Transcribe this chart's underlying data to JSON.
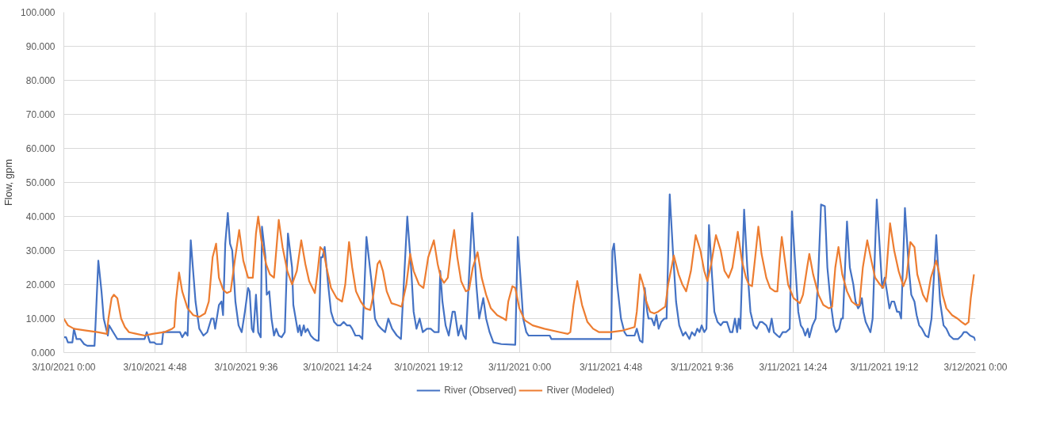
{
  "chart_data": {
    "type": "line",
    "ylabel": "Flow, gpm",
    "xlim": [
      "2021-03-10T00:00",
      "2021-03-12T00:00"
    ],
    "ylim": [
      0,
      100
    ],
    "xticks": [
      {
        "value": "2021-03-10T00:00",
        "label": "3/10/2021 0:00"
      },
      {
        "value": "2021-03-10T04:48",
        "label": "3/10/2021 4:48"
      },
      {
        "value": "2021-03-10T09:36",
        "label": "3/10/2021 9:36"
      },
      {
        "value": "2021-03-10T14:24",
        "label": "3/10/2021 14:24"
      },
      {
        "value": "2021-03-10T19:12",
        "label": "3/10/2021 19:12"
      },
      {
        "value": "2021-03-11T00:00",
        "label": "3/11/2021 0:00"
      },
      {
        "value": "2021-03-11T04:48",
        "label": "3/11/2021 4:48"
      },
      {
        "value": "2021-03-11T09:36",
        "label": "3/11/2021 9:36"
      },
      {
        "value": "2021-03-11T14:24",
        "label": "3/11/2021 14:24"
      },
      {
        "value": "2021-03-11T19:12",
        "label": "3/11/2021 19:12"
      },
      {
        "value": "2021-03-12T00:00",
        "label": "3/12/2021 0:00"
      }
    ],
    "yticks": [
      {
        "value": 0,
        "label": "0.000"
      },
      {
        "value": 10,
        "label": "10.000"
      },
      {
        "value": 20,
        "label": "20.000"
      },
      {
        "value": 30,
        "label": "30.000"
      },
      {
        "value": 40,
        "label": "40.000"
      },
      {
        "value": 50,
        "label": "50.000"
      },
      {
        "value": 60,
        "label": "60.000"
      },
      {
        "value": 70,
        "label": "70.000"
      },
      {
        "value": 80,
        "label": "80.000"
      },
      {
        "value": 90,
        "label": "90.000"
      },
      {
        "value": 100,
        "label": "100.000"
      }
    ],
    "grid": true,
    "legend": "bottom",
    "series": [
      {
        "name": "River (Observed)",
        "color": "#4472c4",
        "x": [
          "2021-03-10T00:00",
          "2021-03-10T00:07",
          "2021-03-10T00:13",
          "2021-03-10T00:27",
          "2021-03-10T00:32",
          "2021-03-10T00:40",
          "2021-03-10T00:52",
          "2021-03-10T01:04",
          "2021-03-10T01:14",
          "2021-03-10T01:37",
          "2021-03-10T01:41",
          "2021-03-10T01:49",
          "2021-03-10T01:59",
          "2021-03-10T02:06",
          "2021-03-10T02:19",
          "2021-03-10T02:23",
          "2021-03-10T02:36",
          "2021-03-10T02:49",
          "2021-03-10T04:15",
          "2021-03-10T04:22",
          "2021-03-10T04:32",
          "2021-03-10T04:45",
          "2021-03-10T04:52",
          "2021-03-10T05:10",
          "2021-03-10T05:14",
          "2021-03-10T05:54",
          "2021-03-10T06:07",
          "2021-03-10T06:14",
          "2021-03-10T06:24",
          "2021-03-10T06:31",
          "2021-03-10T06:41",
          "2021-03-10T06:56",
          "2021-03-10T07:08",
          "2021-03-10T07:21",
          "2021-03-10T07:33",
          "2021-03-10T07:46",
          "2021-03-10T07:53",
          "2021-03-10T07:58",
          "2021-03-10T08:10",
          "2021-03-10T08:18",
          "2021-03-10T08:23",
          "2021-03-10T08:30",
          "2021-03-10T08:38",
          "2021-03-10T08:45",
          "2021-03-10T08:52",
          "2021-03-10T09:02",
          "2021-03-10T09:12",
          "2021-03-10T09:22",
          "2021-03-10T09:32",
          "2021-03-10T09:42",
          "2021-03-10T09:47",
          "2021-03-10T09:54",
          "2021-03-10T09:59",
          "2021-03-10T10:07",
          "2021-03-10T10:14",
          "2021-03-10T10:22",
          "2021-03-10T10:26",
          "2021-03-10T10:37",
          "2021-03-10T10:41",
          "2021-03-10T10:49",
          "2021-03-10T10:56",
          "2021-03-10T11:04",
          "2021-03-10T11:11",
          "2021-03-10T11:19",
          "2021-03-10T11:28",
          "2021-03-10T11:38",
          "2021-03-10T11:48",
          "2021-03-10T12:01",
          "2021-03-10T12:05",
          "2021-03-10T12:16",
          "2021-03-10T12:20",
          "2021-03-10T12:25",
          "2021-03-10T12:30",
          "2021-03-10T12:38",
          "2021-03-10T12:43",
          "2021-03-10T12:50",
          "2021-03-10T13:00",
          "2021-03-10T13:10",
          "2021-03-10T13:20",
          "2021-03-10T13:25",
          "2021-03-10T13:32",
          "2021-03-10T13:37",
          "2021-03-10T13:44",
          "2021-03-10T13:55",
          "2021-03-10T14:04",
          "2021-03-10T14:14",
          "2021-03-10T14:24",
          "2021-03-10T14:34",
          "2021-03-10T14:44",
          "2021-03-10T14:54",
          "2021-03-10T15:04",
          "2021-03-10T15:11",
          "2021-03-10T15:21",
          "2021-03-10T15:34",
          "2021-03-10T15:43",
          "2021-03-10T15:56",
          "2021-03-10T16:13",
          "2021-03-10T16:23",
          "2021-03-10T16:33",
          "2021-03-10T16:43",
          "2021-03-10T16:55",
          "2021-03-10T17:05",
          "2021-03-10T17:17",
          "2021-03-10T17:32",
          "2021-03-10T17:45",
          "2021-03-10T18:05",
          "2021-03-10T18:17",
          "2021-03-10T18:25",
          "2021-03-10T18:34",
          "2021-03-10T18:44",
          "2021-03-10T18:54",
          "2021-03-10T19:07",
          "2021-03-10T19:19",
          "2021-03-10T19:31",
          "2021-03-10T19:44",
          "2021-03-10T19:49",
          "2021-03-10T19:56",
          "2021-03-10T20:06",
          "2021-03-10T20:16",
          "2021-03-10T20:28",
          "2021-03-10T20:35",
          "2021-03-10T20:46",
          "2021-03-10T20:55",
          "2021-03-10T21:03",
          "2021-03-10T21:10",
          "2021-03-10T21:30",
          "2021-03-10T21:43",
          "2021-03-10T21:52",
          "2021-03-10T22:05",
          "2021-03-10T22:14",
          "2021-03-10T22:25",
          "2021-03-10T22:37",
          "2021-03-10T23:02",
          "2021-03-10T23:46",
          "2021-03-10T23:54",
          "2021-03-11T00:04",
          "2021-03-11T00:11",
          "2021-03-11T00:21",
          "2021-03-11T00:28",
          "2021-03-11T01:35",
          "2021-03-11T01:40",
          "2021-03-11T04:49",
          "2021-03-11T04:53",
          "2021-03-11T04:58",
          "2021-03-11T05:08",
          "2021-03-11T05:20",
          "2021-03-11T05:31",
          "2021-03-11T05:38",
          "2021-03-11T06:03",
          "2021-03-11T06:10",
          "2021-03-11T06:20",
          "2021-03-11T06:28",
          "2021-03-11T06:35",
          "2021-03-11T06:43",
          "2021-03-11T06:47",
          "2021-03-11T06:57",
          "2021-03-11T07:05",
          "2021-03-11T07:12",
          "2021-03-11T07:19",
          "2021-03-11T07:27",
          "2021-03-11T07:37",
          "2021-03-11T07:44",
          "2021-03-11T07:54",
          "2021-03-11T08:04",
          "2021-03-11T08:14",
          "2021-03-11T08:24",
          "2021-03-11T08:36",
          "2021-03-11T08:44",
          "2021-03-11T08:56",
          "2021-03-11T09:04",
          "2021-03-11T09:13",
          "2021-03-11T09:21",
          "2021-03-11T09:28",
          "2021-03-11T09:35",
          "2021-03-11T09:43",
          "2021-03-11T09:50",
          "2021-03-11T09:58",
          "2021-03-11T10:08",
          "2021-03-11T10:15",
          "2021-03-11T10:25",
          "2021-03-11T10:35",
          "2021-03-11T10:43",
          "2021-03-11T10:55",
          "2021-03-11T11:05",
          "2021-03-11T11:12",
          "2021-03-11T11:20",
          "2021-03-11T11:27",
          "2021-03-11T11:32",
          "2021-03-11T11:37",
          "2021-03-11T11:49",
          "2021-03-11T11:59",
          "2021-03-11T12:09",
          "2021-03-11T12:19",
          "2021-03-11T12:29",
          "2021-03-11T12:39",
          "2021-03-11T12:46",
          "2021-03-11T12:59",
          "2021-03-11T13:08",
          "2021-03-11T13:16",
          "2021-03-11T13:23",
          "2021-03-11T13:34",
          "2021-03-11T13:41",
          "2021-03-11T13:51",
          "2021-03-11T14:01",
          "2021-03-11T14:13",
          "2021-03-11T14:20",
          "2021-03-11T14:31",
          "2021-03-11T14:40",
          "2021-03-11T14:48",
          "2021-03-11T14:55",
          "2021-03-11T15:02",
          "2021-03-11T15:10",
          "2021-03-11T15:15",
          "2021-03-11T15:25",
          "2021-03-11T15:35",
          "2021-03-11T15:42",
          "2021-03-11T15:52",
          "2021-03-11T16:04",
          "2021-03-11T16:12",
          "2021-03-11T16:22",
          "2021-03-11T16:32",
          "2021-03-11T16:39",
          "2021-03-11T16:49",
          "2021-03-11T16:56",
          "2021-03-11T17:01",
          "2021-03-11T17:14",
          "2021-03-11T17:23",
          "2021-03-11T17:34",
          "2021-03-11T17:41",
          "2021-03-11T17:49",
          "2021-03-11T17:56",
          "2021-03-11T18:01",
          "2021-03-11T18:06",
          "2021-03-11T18:13",
          "2021-03-11T18:23",
          "2021-03-11T18:28",
          "2021-03-11T18:35",
          "2021-03-11T18:48",
          "2021-03-11T18:58",
          "2021-03-11T19:05",
          "2021-03-11T19:13",
          "2021-03-11T19:20",
          "2021-03-11T19:28",
          "2021-03-11T19:35",
          "2021-03-11T19:43",
          "2021-03-11T19:52",
          "2021-03-11T19:59",
          "2021-03-11T20:05",
          "2021-03-11T20:17",
          "2021-03-11T20:29",
          "2021-03-11T20:37",
          "2021-03-11T20:47",
          "2021-03-11T20:54",
          "2021-03-11T21:02",
          "2021-03-11T21:11",
          "2021-03-11T21:22",
          "2021-03-11T21:31",
          "2021-03-11T21:41",
          "2021-03-11T21:56",
          "2021-03-11T22:08",
          "2021-03-11T22:19",
          "2021-03-11T22:28",
          "2021-03-11T22:38",
          "2021-03-11T22:50",
          "2021-03-11T23:05",
          "2021-03-11T23:16",
          "2021-03-11T23:23",
          "2021-03-11T23:32",
          "2021-03-11T23:43",
          "2021-03-11T23:55",
          "2021-03-12T00:00"
        ],
        "values": [
          4.5,
          4.5,
          3,
          3,
          7,
          4,
          4,
          2.5,
          2,
          2,
          10,
          27,
          18,
          10,
          5,
          8,
          6,
          4,
          4,
          6,
          3,
          3,
          2.5,
          2.5,
          6,
          6,
          6,
          4.5,
          6,
          5,
          33,
          15,
          7,
          5,
          6,
          10,
          10,
          7,
          14,
          15,
          11,
          32,
          41,
          32,
          30,
          15,
          8,
          6,
          12,
          19,
          18,
          7,
          6,
          17,
          6,
          4.5,
          37,
          28,
          17,
          18,
          10,
          5,
          7,
          5,
          4.5,
          6,
          35,
          25,
          14,
          8,
          6,
          8,
          5,
          8,
          6,
          7,
          5,
          4,
          3.5,
          3.5,
          28,
          28,
          31,
          20,
          12,
          9,
          8,
          8,
          9,
          8,
          8,
          7,
          5,
          5,
          4,
          34,
          20,
          10,
          8,
          7,
          6,
          10,
          7,
          5,
          4,
          40,
          25,
          12,
          7,
          10,
          6,
          7,
          7,
          6,
          6,
          24,
          15,
          8,
          5,
          12,
          12,
          5,
          8,
          5,
          4,
          41,
          20,
          10,
          16,
          10,
          6,
          3,
          2.5,
          2.3,
          34,
          20,
          10,
          6,
          5,
          5,
          4,
          4,
          30,
          32,
          20,
          10,
          6,
          5,
          5,
          7,
          3.5,
          3,
          19,
          12,
          10,
          10,
          8,
          11,
          7,
          9,
          10,
          10,
          46.5,
          30,
          15,
          8,
          5,
          6,
          4,
          6,
          5,
          7,
          6,
          8,
          6,
          7,
          37.5,
          22,
          12,
          9,
          8,
          9,
          9,
          6,
          6,
          10,
          6,
          10,
          7,
          42,
          25,
          12,
          8,
          7,
          9,
          9,
          8,
          6,
          10,
          6,
          5,
          4.5,
          6,
          6,
          7,
          41.5,
          25,
          12,
          8,
          7,
          5,
          7,
          4.5,
          8,
          10,
          20,
          43.5,
          43,
          25,
          15,
          8,
          6,
          7,
          10,
          10,
          38.5,
          25,
          20,
          15,
          13,
          14,
          16,
          12,
          9,
          7,
          6,
          10,
          45,
          30,
          19,
          22,
          18,
          13,
          15,
          15,
          12,
          12,
          10,
          42.5,
          25,
          17,
          15,
          11,
          8,
          7,
          5,
          4.5,
          10,
          34.5,
          15,
          8,
          7,
          5,
          4,
          4,
          5,
          6,
          6,
          5,
          4.5,
          3.5
        ]
      },
      {
        "name": "River (Modeled)",
        "color": "#ed7d31",
        "x": [
          "2021-03-10T00:00",
          "2021-03-10T00:13",
          "2021-03-10T00:32",
          "2021-03-10T01:10",
          "2021-03-10T01:46",
          "2021-03-10T02:16",
          "2021-03-10T02:21",
          "2021-03-10T02:31",
          "2021-03-10T02:38",
          "2021-03-10T02:49",
          "2021-03-10T03:01",
          "2021-03-10T03:13",
          "2021-03-10T03:26",
          "2021-03-10T03:50",
          "2021-03-10T04:15",
          "2021-03-10T04:40",
          "2021-03-10T05:17",
          "2021-03-10T05:42",
          "2021-03-10T05:49",
          "2021-03-10T05:54",
          "2021-03-10T06:04",
          "2021-03-10T06:14",
          "2021-03-10T06:31",
          "2021-03-10T06:49",
          "2021-03-10T07:08",
          "2021-03-10T07:26",
          "2021-03-10T07:38",
          "2021-03-10T07:50",
          "2021-03-10T08:01",
          "2021-03-10T08:10",
          "2021-03-10T08:23",
          "2021-03-10T08:35",
          "2021-03-10T08:47",
          "2021-03-10T09:00",
          "2021-03-10T09:14",
          "2021-03-10T09:27",
          "2021-03-10T09:42",
          "2021-03-10T09:57",
          "2021-03-10T10:07",
          "2021-03-10T10:14",
          "2021-03-10T10:24",
          "2021-03-10T10:39",
          "2021-03-10T10:51",
          "2021-03-10T11:04",
          "2021-03-10T11:19",
          "2021-03-10T11:31",
          "2021-03-10T11:46",
          "2021-03-10T12:01",
          "2021-03-10T12:16",
          "2021-03-10T12:30",
          "2021-03-10T12:43",
          "2021-03-10T12:55",
          "2021-03-10T13:13",
          "2021-03-10T13:22",
          "2021-03-10T13:30",
          "2021-03-10T13:40",
          "2021-03-10T13:50",
          "2021-03-10T14:04",
          "2021-03-10T14:22",
          "2021-03-10T14:39",
          "2021-03-10T14:49",
          "2021-03-10T15:01",
          "2021-03-10T15:11",
          "2021-03-10T15:23",
          "2021-03-10T15:38",
          "2021-03-10T15:53",
          "2021-03-10T16:08",
          "2021-03-10T16:18",
          "2021-03-10T16:31",
          "2021-03-10T16:38",
          "2021-03-10T16:48",
          "2021-03-10T17:00",
          "2021-03-10T17:15",
          "2021-03-10T17:32",
          "2021-03-10T17:47",
          "2021-03-10T18:02",
          "2021-03-10T18:14",
          "2021-03-10T18:25",
          "2021-03-10T18:42",
          "2021-03-10T18:56",
          "2021-03-10T19:11",
          "2021-03-10T19:29",
          "2021-03-10T19:41",
          "2021-03-10T19:51",
          "2021-03-10T20:01",
          "2021-03-10T20:13",
          "2021-03-10T20:23",
          "2021-03-10T20:33",
          "2021-03-10T20:43",
          "2021-03-10T20:55",
          "2021-03-10T21:10",
          "2021-03-10T21:20",
          "2021-03-10T21:32",
          "2021-03-10T21:47",
          "2021-03-10T22:00",
          "2021-03-10T22:14",
          "2021-03-10T22:29",
          "2021-03-10T22:49",
          "2021-03-10T23:09",
          "2021-03-10T23:17",
          "2021-03-10T23:24",
          "2021-03-10T23:37",
          "2021-03-10T23:46",
          "2021-03-10T23:59",
          "2021-03-11T00:16",
          "2021-03-11T00:41",
          "2021-03-11T01:18",
          "2021-03-11T02:07",
          "2021-03-11T02:32",
          "2021-03-11T02:40",
          "2021-03-11T02:50",
          "2021-03-11T03:02",
          "2021-03-11T03:17",
          "2021-03-11T03:34",
          "2021-03-11T03:52",
          "2021-03-11T04:11",
          "2021-03-11T04:49",
          "2021-03-11T05:26",
          "2021-03-11T06:03",
          "2021-03-11T06:10",
          "2021-03-11T06:20",
          "2021-03-11T06:30",
          "2021-03-11T06:40",
          "2021-03-11T06:52",
          "2021-03-11T07:05",
          "2021-03-11T07:17",
          "2021-03-11T07:40",
          "2021-03-11T07:49",
          "2021-03-11T08:07",
          "2021-03-11T08:22",
          "2021-03-11T08:34",
          "2021-03-11T08:46",
          "2021-03-11T09:01",
          "2021-03-11T09:16",
          "2021-03-11T09:31",
          "2021-03-11T09:43",
          "2021-03-11T09:53",
          "2021-03-11T10:05",
          "2021-03-11T10:20",
          "2021-03-11T10:35",
          "2021-03-11T10:47",
          "2021-03-11T11:00",
          "2021-03-11T11:12",
          "2021-03-11T11:29",
          "2021-03-11T11:42",
          "2021-03-11T11:55",
          "2021-03-11T12:04",
          "2021-03-11T12:14",
          "2021-03-11T12:24",
          "2021-03-11T12:34",
          "2021-03-11T12:44",
          "2021-03-11T12:59",
          "2021-03-11T13:11",
          "2021-03-11T13:26",
          "2021-03-11T13:34",
          "2021-03-11T13:41",
          "2021-03-11T13:48",
          "2021-03-11T13:58",
          "2021-03-11T14:08",
          "2021-03-11T14:25",
          "2021-03-11T14:45",
          "2021-03-11T14:55",
          "2021-03-11T15:08",
          "2021-03-11T15:15",
          "2021-03-11T15:27",
          "2021-03-11T15:44",
          "2021-03-11T15:59",
          "2021-03-11T16:17",
          "2021-03-11T16:27",
          "2021-03-11T16:37",
          "2021-03-11T16:47",
          "2021-03-11T16:59",
          "2021-03-11T17:14",
          "2021-03-11T17:29",
          "2021-03-11T17:43",
          "2021-03-11T17:53",
          "2021-03-11T18:04",
          "2021-03-11T18:18",
          "2021-03-11T18:31",
          "2021-03-11T18:43",
          "2021-03-11T18:58",
          "2021-03-11T19:08",
          "2021-03-11T19:17",
          "2021-03-11T19:30",
          "2021-03-11T19:43",
          "2021-03-11T19:57",
          "2021-03-11T20:12",
          "2021-03-11T20:22",
          "2021-03-11T20:34",
          "2021-03-11T20:47",
          "2021-03-11T20:56",
          "2021-03-11T21:14",
          "2021-03-11T21:26",
          "2021-03-11T21:39",
          "2021-03-11T21:56",
          "2021-03-11T22:06",
          "2021-03-11T22:16",
          "2021-03-11T22:28",
          "2021-03-11T22:46",
          "2021-03-11T23:03",
          "2021-03-11T23:16",
          "2021-03-11T23:28",
          "2021-03-11T23:38",
          "2021-03-11T23:45",
          "2021-03-11T23:55"
        ],
        "values": [
          10,
          8,
          7,
          6.5,
          6,
          5.5,
          10,
          16,
          17,
          16,
          10,
          7.5,
          6,
          5.5,
          5,
          5.5,
          6,
          7,
          7.5,
          15,
          23.5,
          18,
          13,
          11,
          10.5,
          11.5,
          15,
          28,
          32,
          22,
          18.5,
          17.5,
          18,
          27,
          36,
          27,
          22,
          22,
          35,
          40,
          33,
          26,
          23,
          22,
          39,
          31,
          24,
          20,
          24,
          33,
          26,
          21,
          17.5,
          24,
          31,
          30,
          25,
          19,
          16,
          15,
          20,
          32.5,
          25,
          18,
          15,
          13,
          12.5,
          17,
          26,
          27,
          24,
          18,
          14.5,
          14,
          13.5,
          20,
          29,
          24,
          20,
          19,
          28,
          33,
          26,
          22,
          20.5,
          22,
          30,
          36,
          28,
          21,
          18,
          18.5,
          25,
          29.5,
          22,
          17,
          13,
          11,
          10,
          9.5,
          15,
          19.5,
          19,
          13,
          9.5,
          8,
          7,
          6,
          5.5,
          6,
          14,
          21,
          14,
          9,
          7,
          6,
          6,
          6.5,
          7.5,
          12,
          23,
          20,
          15,
          12,
          11.5,
          12,
          13.5,
          20,
          28.5,
          23,
          20,
          18,
          24,
          34.5,
          30,
          24,
          21,
          26,
          34.5,
          30,
          24,
          22,
          25,
          35.5,
          27,
          22,
          20,
          19.5,
          28,
          37,
          29,
          22,
          19,
          18,
          18,
          27,
          34,
          27,
          20,
          16,
          14.5,
          17,
          25,
          29,
          23,
          17,
          14,
          13,
          13.5,
          25,
          31,
          23,
          18,
          15,
          14,
          14,
          25,
          33,
          27,
          22,
          20,
          19,
          22,
          38,
          30,
          24,
          19.5,
          22,
          32.5,
          31,
          23,
          17,
          15,
          22,
          27,
          23,
          17,
          13,
          11,
          10,
          9,
          8.2,
          9,
          16,
          23
        ]
      }
    ]
  }
}
